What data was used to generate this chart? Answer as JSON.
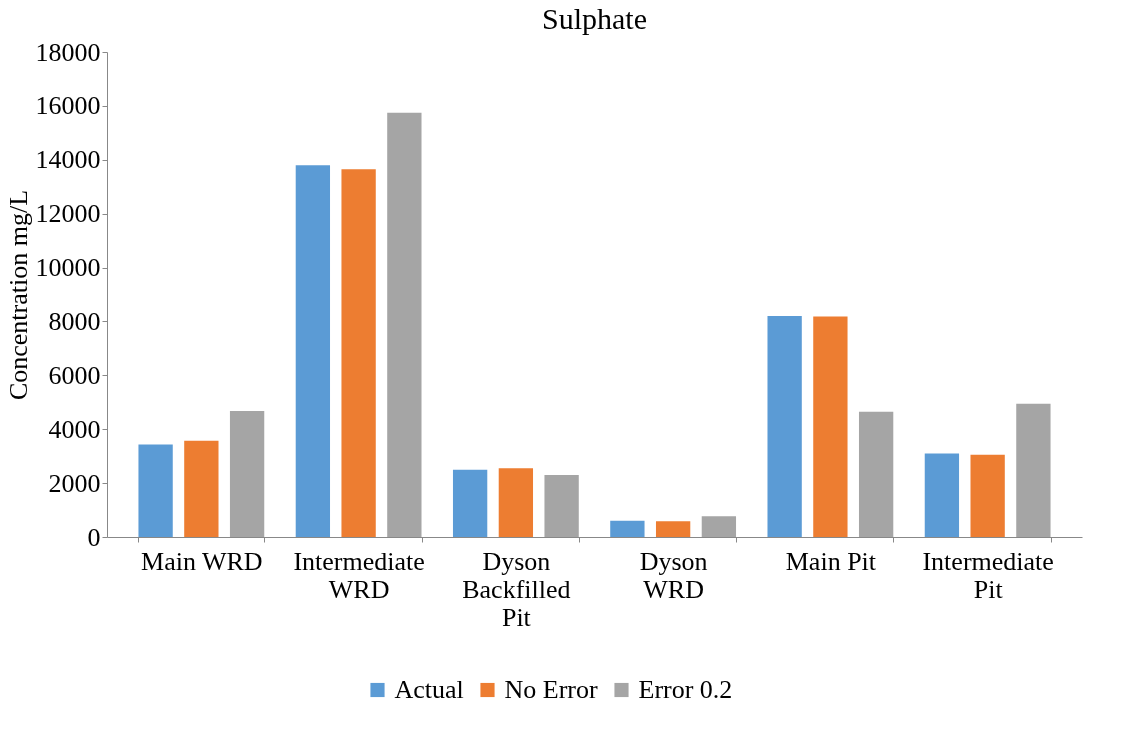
{
  "chart_data": {
    "type": "bar",
    "title": "Sulphate",
    "ylabel": "Concentration mg/L",
    "categories": [
      "Main WRD",
      "Intermediate\nWRD",
      "Dyson\nBackfilled\nPit",
      "Dyson\nWRD",
      "Main Pit",
      "Intermediate\nPit"
    ],
    "series": [
      {
        "name": "Actual",
        "color": "#5b9bd5",
        "values": [
          3430,
          13800,
          2500,
          600,
          8200,
          3100
        ]
      },
      {
        "name": "No Error",
        "color": "#ed7d31",
        "values": [
          3570,
          13650,
          2550,
          580,
          8180,
          3050
        ]
      },
      {
        "name": "Error 0.2",
        "color": "#a5a5a5",
        "values": [
          4680,
          15750,
          2300,
          770,
          4650,
          4950
        ]
      }
    ],
    "ylim": [
      0,
      18000
    ],
    "yticks": [
      0,
      2000,
      4000,
      6000,
      8000,
      10000,
      12000,
      14000,
      16000,
      18000
    ],
    "grid": false,
    "legend": "bottom"
  }
}
